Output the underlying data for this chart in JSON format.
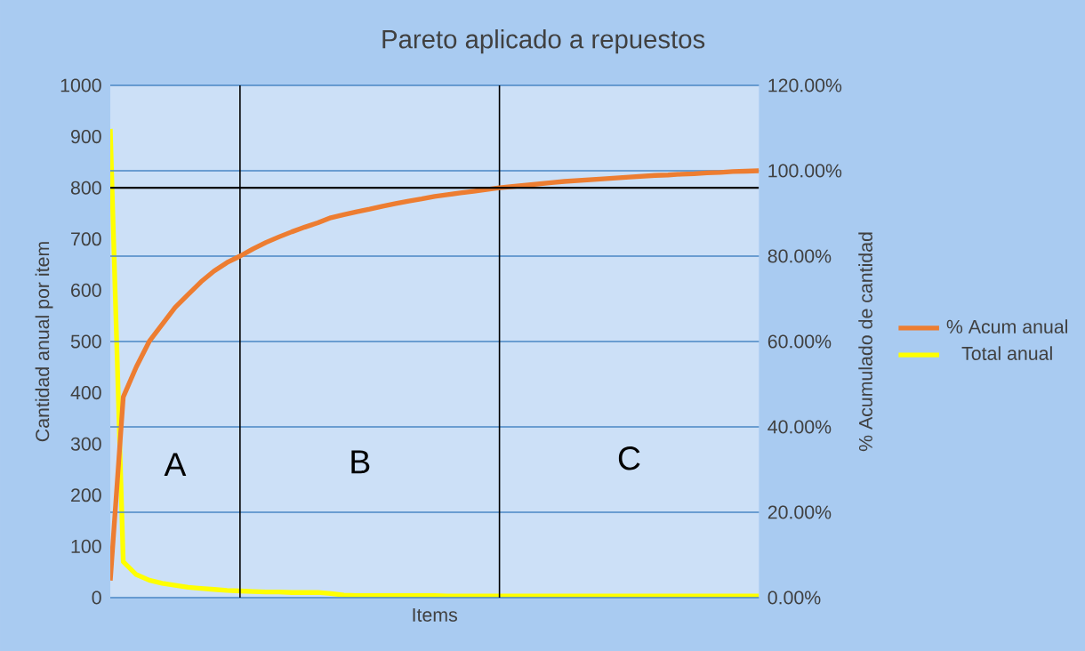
{
  "chart_data": {
    "type": "line",
    "title": "Pareto aplicado a repuestos",
    "xlabel": "Items",
    "ylabel": "Cantidad anual por item",
    "y2label": "% Acumulado de cantidad",
    "categories": [
      null,
      null,
      null,
      null,
      null,
      null,
      null,
      null,
      null,
      null,
      null,
      null,
      null,
      null,
      null,
      null,
      null,
      null,
      null,
      null,
      null,
      null,
      null,
      null,
      null,
      null,
      null,
      null,
      null,
      null,
      null,
      null,
      null,
      null,
      null,
      null,
      null,
      null,
      null,
      null,
      null,
      null,
      null,
      null,
      null,
      null,
      null,
      null,
      null,
      null,
      null
    ],
    "ylim": [
      0,
      1000
    ],
    "yticks": [
      0,
      100,
      200,
      300,
      400,
      500,
      600,
      700,
      800,
      900,
      1000
    ],
    "y2lim": [
      0,
      120
    ],
    "y2ticks": [
      {
        "value": 0,
        "label": "0.00%"
      },
      {
        "value": 20,
        "label": "20.00%"
      },
      {
        "value": 40,
        "label": "40.00%"
      },
      {
        "value": 60,
        "label": "60.00%"
      },
      {
        "value": 80,
        "label": "80.00%"
      },
      {
        "value": 100,
        "label": "100.00%"
      },
      {
        "value": 120,
        "label": "120.00%"
      }
    ],
    "grid": true,
    "legend": "right",
    "series": [
      {
        "name": "% Acum anual",
        "color": "#ed7d31",
        "axis": "y2",
        "values": [
          4,
          47,
          54,
          60,
          64,
          68,
          71,
          74,
          76.5,
          78.5,
          80,
          81.7,
          83.2,
          84.5,
          85.7,
          86.8,
          87.8,
          89,
          89.7,
          90.4,
          91,
          91.7,
          92.3,
          92.9,
          93.4,
          94,
          94.4,
          94.8,
          95.2,
          95.6,
          96,
          96.3,
          96.6,
          96.9,
          97.2,
          97.5,
          97.7,
          97.9,
          98.1,
          98.3,
          98.5,
          98.7,
          98.9,
          99,
          99.2,
          99.3,
          99.5,
          99.6,
          99.8,
          99.9,
          100
        ]
      },
      {
        "name": "Total anual",
        "color": "#ffff00",
        "values": [
          915,
          70,
          45,
          34,
          28,
          24,
          20,
          18,
          16,
          14,
          13,
          12,
          11,
          11,
          10,
          10,
          10,
          8,
          5,
          4,
          4,
          4,
          4,
          4,
          4,
          4,
          3,
          3,
          3,
          3,
          3,
          3,
          3,
          3,
          3,
          3,
          3,
          3,
          3,
          3,
          3,
          3,
          3,
          3,
          3,
          3,
          3,
          3,
          3,
          3,
          3
        ]
      }
    ],
    "ref_lines": [
      {
        "axis": "y2",
        "value": 96,
        "color": "#000000"
      }
    ],
    "annotations": [
      "A",
      "B",
      "C"
    ]
  }
}
